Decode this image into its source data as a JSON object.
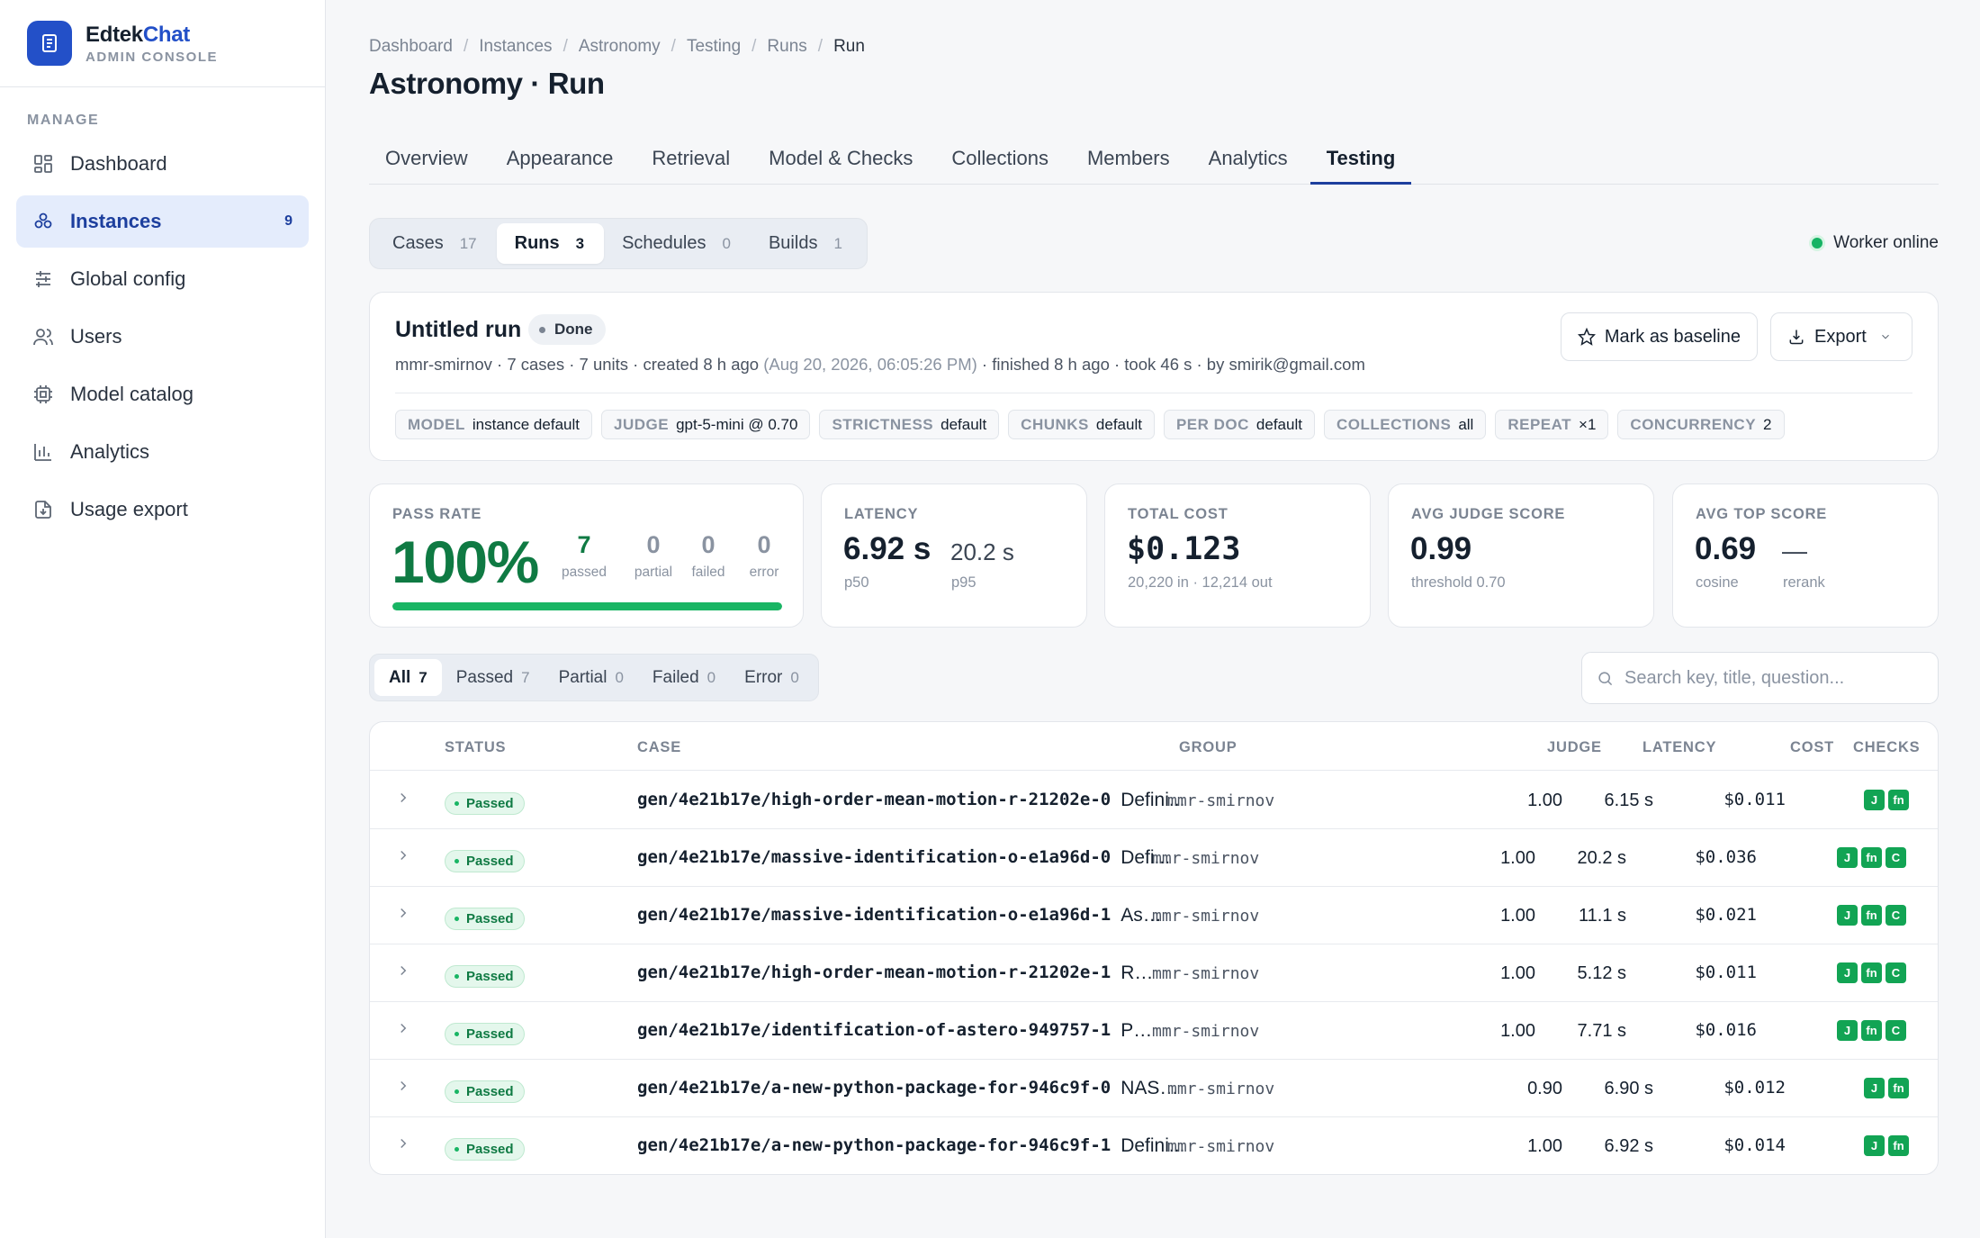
{
  "brand": {
    "name_prefix": "Edtek",
    "name_accent": "Chat",
    "subtitle": "ADMIN CONSOLE"
  },
  "sidebar": {
    "section": "MANAGE",
    "items": [
      {
        "label": "Dashboard",
        "icon": "dashboard-icon"
      },
      {
        "label": "Instances",
        "icon": "instances-icon",
        "count": "9",
        "active": true
      },
      {
        "label": "Global config",
        "icon": "sliders-icon"
      },
      {
        "label": "Users",
        "icon": "users-icon"
      },
      {
        "label": "Model catalog",
        "icon": "cpu-icon"
      },
      {
        "label": "Analytics",
        "icon": "bar-chart-icon"
      },
      {
        "label": "Usage export",
        "icon": "file-download-icon"
      }
    ]
  },
  "breadcrumb": [
    "Dashboard",
    "Instances",
    "Astronomy",
    "Testing",
    "Runs",
    "Run"
  ],
  "page_title": "Astronomy · Run",
  "tabs": [
    "Overview",
    "Appearance",
    "Retrieval",
    "Model & Checks",
    "Collections",
    "Members",
    "Analytics",
    "Testing"
  ],
  "active_tab": "Testing",
  "subtabs": [
    {
      "label": "Cases",
      "count": "17"
    },
    {
      "label": "Runs",
      "count": "3",
      "active": true
    },
    {
      "label": "Schedules",
      "count": "0"
    },
    {
      "label": "Builds",
      "count": "1"
    }
  ],
  "worker_status": "Worker online",
  "run": {
    "title": "Untitled run",
    "status": "Done",
    "meta_main": "mmr-smirnov · 7 cases · 7 units · created 8 h ago",
    "meta_date": "(Aug 20, 2026, 06:05:26 PM)",
    "meta_tail": "· finished 8 h ago · took 46 s · by smirik@gmail.com",
    "baseline_button": "Mark as baseline",
    "export_button": "Export",
    "chips": [
      {
        "key": "MODEL",
        "value": "instance default"
      },
      {
        "key": "JUDGE",
        "value": "gpt-5-mini @ 0.70"
      },
      {
        "key": "STRICTNESS",
        "value": "default"
      },
      {
        "key": "CHUNKS",
        "value": "default"
      },
      {
        "key": "PER DOC",
        "value": "default"
      },
      {
        "key": "COLLECTIONS",
        "value": "all"
      },
      {
        "key": "REPEAT",
        "value": "×1"
      },
      {
        "key": "CONCURRENCY",
        "value": "2"
      }
    ]
  },
  "stats": {
    "pass_rate": {
      "label": "PASS RATE",
      "value": "100%",
      "progress": 1.0,
      "breakdown": [
        {
          "n": "7",
          "label": "passed"
        },
        {
          "n": "0",
          "label": "partial"
        },
        {
          "n": "0",
          "label": "failed"
        },
        {
          "n": "0",
          "label": "error"
        }
      ]
    },
    "latency": {
      "label": "LATENCY",
      "p50": "6.92 s",
      "p50_label": "p50",
      "p95": "20.2 s",
      "p95_label": "p95"
    },
    "total_cost": {
      "label": "TOTAL COST",
      "value": "$0.123",
      "sub": "20,220 in · 12,214 out"
    },
    "avg_judge": {
      "label": "AVG JUDGE SCORE",
      "value": "0.99",
      "sub": "threshold 0.70"
    },
    "avg_top": {
      "label": "AVG TOP SCORE",
      "value": "0.69",
      "value_label": "cosine",
      "rerank": "—",
      "rerank_label": "rerank"
    }
  },
  "filters": [
    {
      "label": "All",
      "count": "7",
      "active": true
    },
    {
      "label": "Passed",
      "count": "7"
    },
    {
      "label": "Partial",
      "count": "0"
    },
    {
      "label": "Failed",
      "count": "0"
    },
    {
      "label": "Error",
      "count": "0"
    }
  ],
  "search": {
    "placeholder": "Search key, title, question..."
  },
  "table": {
    "headers": {
      "status": "STATUS",
      "case": "CASE",
      "group": "GROUP",
      "judge": "JUDGE",
      "latency": "LATENCY",
      "cost": "COST",
      "checks": "CHECKS"
    },
    "rows": [
      {
        "status": "Passed",
        "key": "gen/4e21b17e/high-order-mean-motion-r-21202e-0",
        "title": "Defini...",
        "group": "mmr-smirnov",
        "judge": "1.00",
        "latency": "6.15 s",
        "cost": "$0.011",
        "checks": [
          "J",
          "fn"
        ]
      },
      {
        "status": "Passed",
        "key": "gen/4e21b17e/massive-identification-o-e1a96d-0",
        "title": "Defi...",
        "group": "mmr-smirnov",
        "judge": "1.00",
        "latency": "20.2 s",
        "cost": "$0.036",
        "checks": [
          "J",
          "fn",
          "C"
        ]
      },
      {
        "status": "Passed",
        "key": "gen/4e21b17e/massive-identification-o-e1a96d-1",
        "title": "Asy...",
        "group": "mmr-smirnov",
        "judge": "1.00",
        "latency": "11.1 s",
        "cost": "$0.021",
        "checks": [
          "J",
          "fn",
          "C"
        ]
      },
      {
        "status": "Passed",
        "key": "gen/4e21b17e/high-order-mean-motion-r-21202e-1",
        "title": "Res...",
        "group": "mmr-smirnov",
        "judge": "1.00",
        "latency": "5.12 s",
        "cost": "$0.011",
        "checks": [
          "J",
          "fn",
          "C"
        ]
      },
      {
        "status": "Passed",
        "key": "gen/4e21b17e/identification-of-astero-949757-1",
        "title": "Pur...",
        "group": "mmr-smirnov",
        "judge": "1.00",
        "latency": "7.71 s",
        "cost": "$0.016",
        "checks": [
          "J",
          "fn",
          "C"
        ]
      },
      {
        "status": "Passed",
        "key": "gen/4e21b17e/a-new-python-package-for-946c9f-0",
        "title": "NASA ...",
        "group": "mmr-smirnov",
        "judge": "0.90",
        "latency": "6.90 s",
        "cost": "$0.012",
        "checks": [
          "J",
          "fn"
        ]
      },
      {
        "status": "Passed",
        "key": "gen/4e21b17e/a-new-python-package-for-946c9f-1",
        "title": "Defini...",
        "group": "mmr-smirnov",
        "judge": "1.00",
        "latency": "6.92 s",
        "cost": "$0.014",
        "checks": [
          "J",
          "fn"
        ]
      }
    ]
  },
  "colors": {
    "primary": "#2350c8",
    "success": "#19b564",
    "success_text": "#0f7a43"
  }
}
